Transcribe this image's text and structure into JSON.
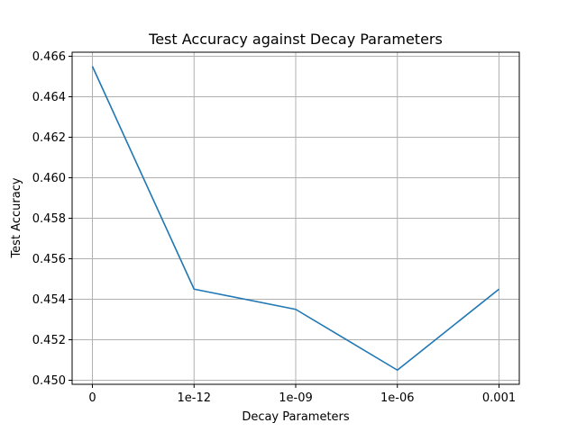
{
  "chart_data": {
    "type": "line",
    "title": "Test Accuracy against Decay Parameters",
    "xlabel": "Decay Parameters",
    "ylabel": "Test Accuracy",
    "categories": [
      "0",
      "1e-12",
      "1e-09",
      "1e-06",
      "0.001"
    ],
    "series": [
      {
        "values": [
          0.4655,
          0.4545,
          0.4535,
          0.4505,
          0.4545
        ],
        "color": "#1f77b4"
      }
    ],
    "ylim": [
      0.4498,
      0.4662
    ],
    "yticks": [
      0.45,
      0.452,
      0.454,
      0.456,
      0.458,
      0.46,
      0.462,
      0.464,
      0.466
    ],
    "ytick_labels": [
      "0.450",
      "0.452",
      "0.454",
      "0.456",
      "0.458",
      "0.460",
      "0.462",
      "0.464",
      "0.466"
    ],
    "grid": true
  }
}
